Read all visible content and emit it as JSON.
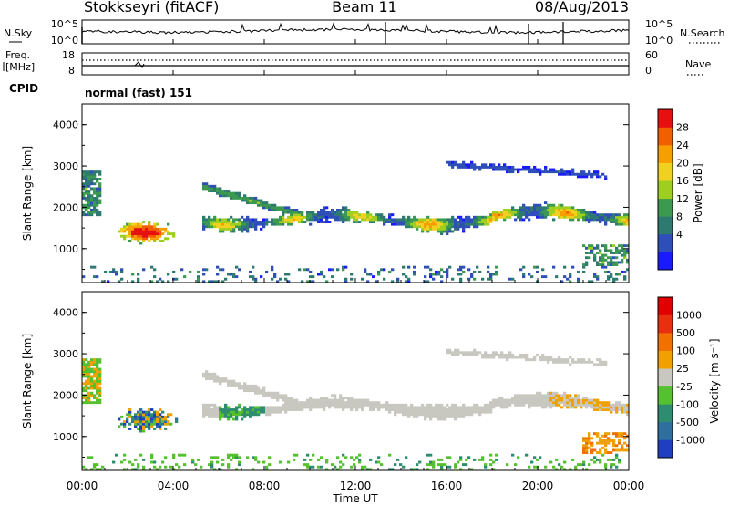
{
  "header": {
    "station": "Stokkseyri (fitACF)",
    "beam": "Beam 11",
    "date": "08/Aug/2013"
  },
  "noise_panel": {
    "left_label": "N.Sky",
    "right_label": "N.Search",
    "left_ticks": [
      "10^5",
      "10^0"
    ],
    "right_ticks": [
      "10^5",
      "10^0"
    ]
  },
  "freq_panel": {
    "left_label_line1": "Freq.",
    "left_label_line2": "[MHz]",
    "right_label": "Nave",
    "left_ticks": [
      "18",
      "8"
    ],
    "right_ticks": [
      "60",
      "0"
    ]
  },
  "cpid_panel": {
    "label": "CPID",
    "mode": "normal (fast) 151"
  },
  "chart_data": [
    {
      "type": "heatmap",
      "parameter": "Power",
      "ylabel": "Slant Range [km]",
      "ylim": [
        180,
        4500
      ],
      "yticks": [
        "1000",
        "2000",
        "3000",
        "4000"
      ],
      "colorbar": {
        "label": "Power [dB]",
        "ticks": [
          "28",
          "24",
          "20",
          "16",
          "12",
          "8",
          "4"
        ],
        "range": [
          0,
          30
        ],
        "colors": [
          "#1a1aff",
          "#2f4fb8",
          "#2f7a70",
          "#3c9a50",
          "#9ecf20",
          "#f0d020",
          "#f5a000",
          "#f06000",
          "#e61010"
        ]
      }
    },
    {
      "type": "heatmap",
      "parameter": "Velocity",
      "ylabel": "Slant Range [km]",
      "xlabel": "Time UT",
      "ylim": [
        180,
        4500
      ],
      "yticks": [
        "1000",
        "2000",
        "3000",
        "4000"
      ],
      "xticks": [
        "00:00",
        "04:00",
        "08:00",
        "12:00",
        "16:00",
        "20:00",
        "00:00"
      ],
      "xlim_hours": [
        0,
        24
      ],
      "colorbar": {
        "label": "Velocity [m s⁻¹]",
        "ticks": [
          "1000",
          "500",
          "100",
          "25",
          "-25",
          "-100",
          "-500",
          "-1000"
        ],
        "colors": [
          "#1f3fc0",
          "#2f6fa0",
          "#2e8c70",
          "#55c030",
          "#c8c8c0",
          "#f0a000",
          "#f07000",
          "#e83010",
          "#e00000"
        ]
      }
    }
  ]
}
